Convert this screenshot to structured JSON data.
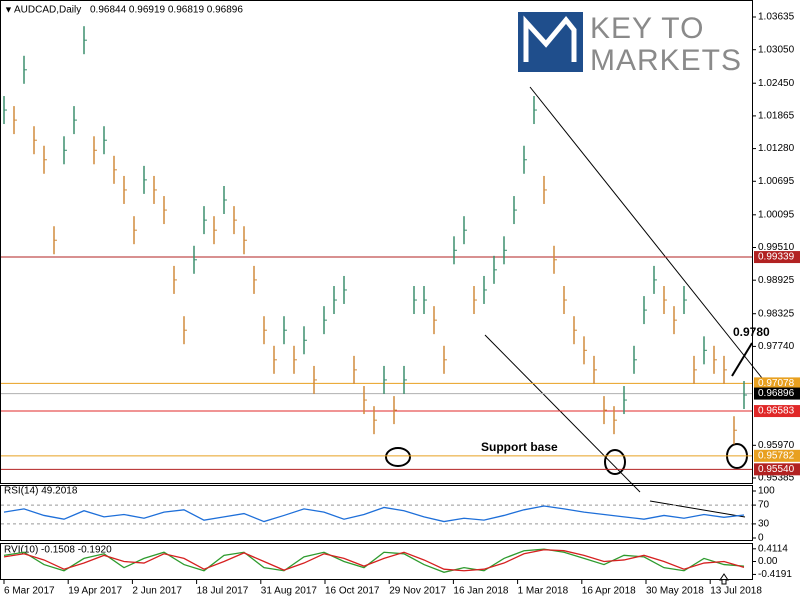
{
  "logo": {
    "line1": "KEY TO",
    "line2": "MARKETS"
  },
  "chart_data": [
    {
      "type": "price_bars",
      "title": "AUDCAD,Daily",
      "subtitle": "0.96844 0.96919 0.96819 0.96896",
      "values": [
        1.0197,
        1.0179,
        1.0269,
        1.0143,
        1.0108,
        0.9964,
        1.0125,
        1.0179,
        1.0322,
        1.0125,
        1.0143,
        1.009,
        1.0054,
        0.9982,
        1.0072,
        1.0054,
        1.0018,
        0.9893,
        0.9803,
        0.9929,
        1.0,
        0.9982,
        1.0036,
        1.0,
        0.9964,
        0.9893,
        0.9803,
        0.975,
        0.9803,
        0.975,
        0.9785,
        0.9714,
        0.9821,
        0.9857,
        0.9875,
        0.9732,
        0.9678,
        0.9642,
        0.9714,
        0.966,
        0.9714,
        0.9857,
        0.9857,
        0.9821,
        0.975,
        0.9946,
        0.9982,
        0.9857,
        0.9875,
        0.9911,
        0.9946,
        1.0018,
        1.0108,
        1.0197,
        1.0054,
        0.9929,
        0.9857,
        0.9803,
        0.9767,
        0.9732,
        0.966,
        0.9642,
        0.9678,
        0.975,
        0.9839,
        0.9893,
        0.9857,
        0.9821,
        0.9857,
        0.9732,
        0.9767,
        0.975,
        0.9732,
        0.9624,
        0.9687
      ],
      "up_color": "#3c8f6e",
      "down_color": "#d08a3c",
      "ylim": [
        0.95385,
        1.03635
      ],
      "yticks": [
        1.03635,
        {
          "value": 1.0305,
          "label": "1.03050"
        },
        {
          "value": 1.0245,
          "label": "1.02450"
        },
        1.01865,
        {
          "value": 1.0128,
          "label": "1.01280"
        },
        1.00695,
        1.00095,
        {
          "value": 0.9951,
          "label": "0.99510"
        },
        0.98925,
        0.98325,
        {
          "value": 0.9774,
          "label": "0.97740"
        },
        {
          "value": 0.9597,
          "label": "0.95970"
        },
        0.95385
      ],
      "levels": [
        {
          "value": 0.99339,
          "color": "#b22222"
        },
        {
          "value": 0.97078,
          "color": "#e8a020"
        },
        {
          "value": 0.96896,
          "color": "#000000"
        },
        {
          "value": 0.96583,
          "color": "#e02828"
        },
        {
          "value": 0.95782,
          "color": "#e8a020"
        },
        {
          "value": 0.9554,
          "label": "0.95540",
          "color": "#b22222"
        }
      ],
      "annotations": [
        "0.9780",
        "Support base"
      ],
      "date_labels": [
        "6 Mar 2017",
        "19 Apr 2017",
        "2 Jun 2017",
        "18 Jul 2017",
        "31 Aug 2017",
        "16 Oct 2017",
        "29 Nov 2017",
        "16 Jan 2018",
        "1 Mar 2018",
        "16 Apr 2018",
        "30 May 2018",
        "13 Jul 2018"
      ]
    },
    {
      "type": "line",
      "title": "RSI(14) 49.2018",
      "series": [
        {
          "color": "#1e6fd9",
          "values": [
            55,
            62,
            48,
            40,
            58,
            45,
            50,
            42,
            55,
            60,
            38,
            45,
            52,
            35,
            48,
            62,
            55,
            40,
            50,
            65,
            58,
            45,
            35,
            42,
            38,
            48,
            60,
            68,
            62,
            55,
            50,
            45,
            40,
            48,
            42,
            50,
            44,
            49
          ]
        }
      ],
      "ylim": [
        0,
        100
      ],
      "yticks": [
        100,
        70,
        30,
        0
      ]
    },
    {
      "type": "line",
      "title": "RVI(10) -0.1508 -0.1920",
      "series": [
        {
          "color": "#2e9b2e",
          "values": [
            0.2,
            0.3,
            -0.1,
            -0.3,
            0.1,
            0.25,
            -0.2,
            0.1,
            0.3,
            -0.1,
            -0.3,
            0.2,
            0.3,
            -0.2,
            -0.3,
            0.15,
            0.3,
            0.0,
            -0.2,
            0.3,
            0.25,
            -0.1,
            -0.35,
            -0.2,
            -0.3,
            0.1,
            0.35,
            0.4,
            0.3,
            0.1,
            -0.1,
            0.2,
            0.15,
            -0.2,
            -0.3,
            0.1,
            -0.1,
            -0.1508
          ]
        },
        {
          "color": "#d62020",
          "values": [
            0.15,
            0.25,
            0.05,
            -0.25,
            -0.05,
            0.2,
            0.0,
            -0.05,
            0.25,
            0.1,
            -0.25,
            0.0,
            0.28,
            0.0,
            -0.28,
            -0.05,
            0.25,
            0.1,
            -0.15,
            0.1,
            0.3,
            0.05,
            -0.25,
            -0.3,
            -0.25,
            -0.05,
            0.25,
            0.38,
            0.35,
            0.2,
            0.0,
            0.05,
            0.2,
            0.0,
            -0.25,
            -0.05,
            0.0,
            -0.192
          ]
        }
      ],
      "ylim": [
        -0.6,
        0.6
      ],
      "yticks": [
        0.4114,
        {
          "value": 0,
          "label": "0.00"
        },
        -0.4191
      ]
    }
  ]
}
